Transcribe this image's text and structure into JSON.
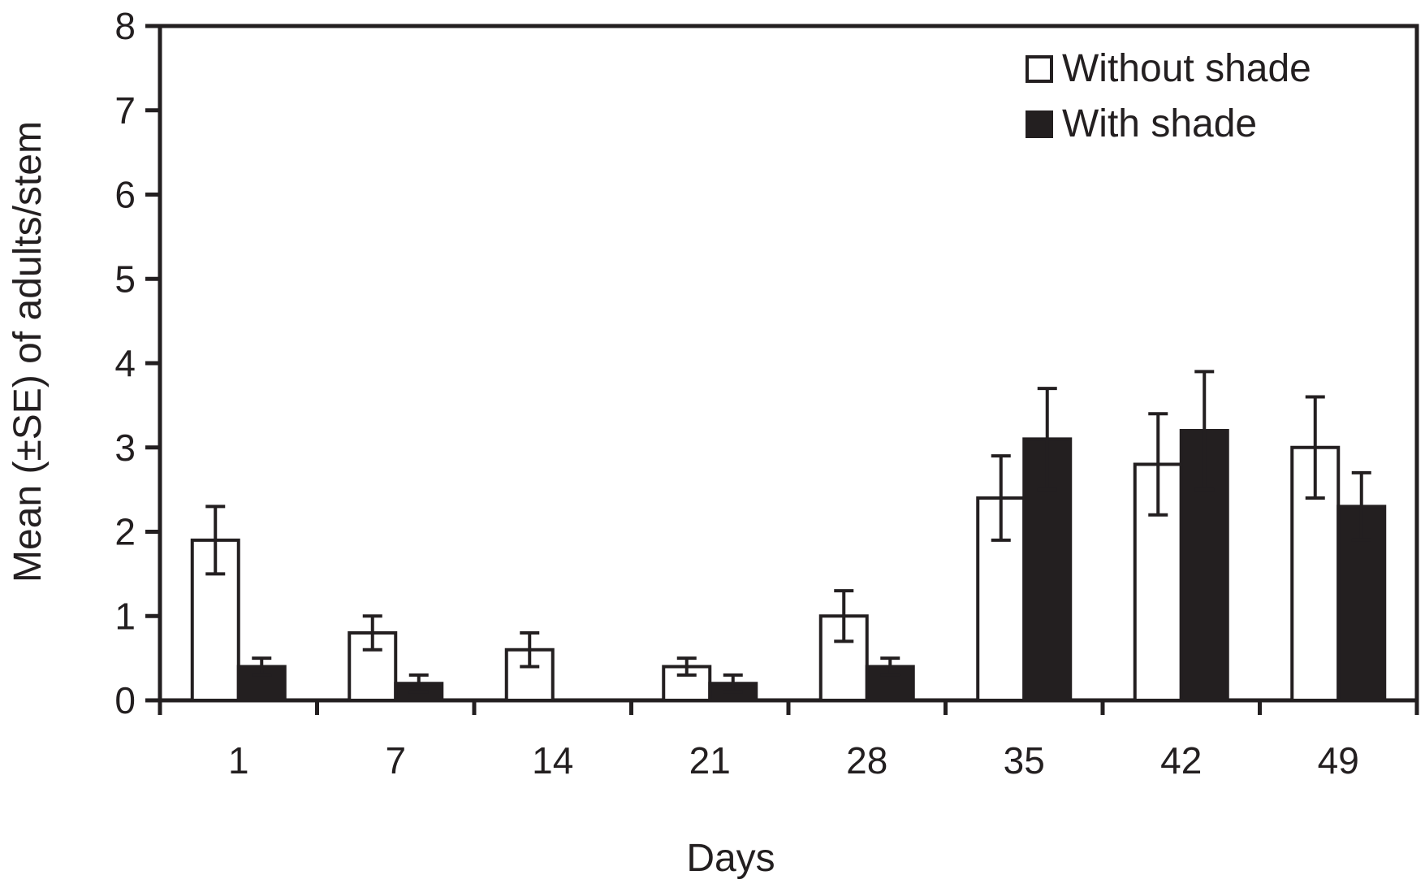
{
  "chart_data": {
    "type": "bar",
    "title": "",
    "xlabel": "Days",
    "ylabel": "Mean (±SE) of adults/stem",
    "categories": [
      "1",
      "7",
      "14",
      "21",
      "28",
      "35",
      "42",
      "49"
    ],
    "ylim": [
      0,
      8
    ],
    "yticks": [
      0,
      1,
      2,
      3,
      4,
      5,
      6,
      7,
      8
    ],
    "grid": false,
    "legend": "top-right",
    "series": [
      {
        "name": "Without shade",
        "color": "#ffffff",
        "values": [
          1.9,
          0.8,
          0.6,
          0.4,
          1.0,
          2.4,
          2.8,
          3.0
        ],
        "errors": [
          0.4,
          0.2,
          0.2,
          0.1,
          0.3,
          0.5,
          0.6,
          0.6
        ]
      },
      {
        "name": "With shade",
        "color": "#231f20",
        "values": [
          0.4,
          0.2,
          0.0,
          0.2,
          0.4,
          3.1,
          3.2,
          2.3
        ],
        "errors": [
          0.1,
          0.1,
          0.0,
          0.1,
          0.1,
          0.6,
          0.7,
          0.4
        ]
      }
    ]
  }
}
